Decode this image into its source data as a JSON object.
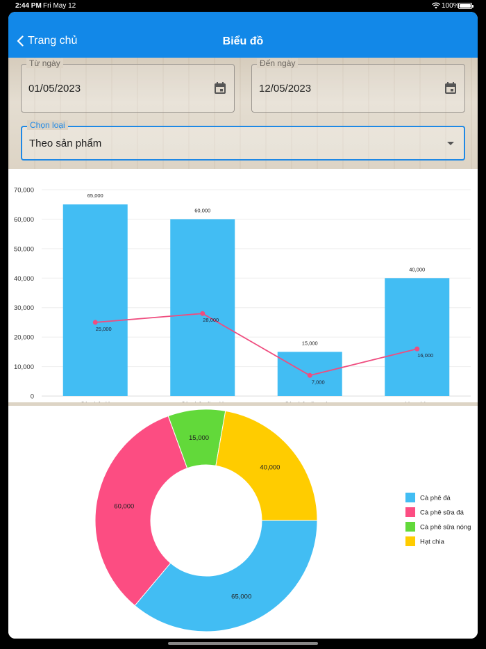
{
  "status": {
    "time": "2:44 PM",
    "date": "Fri May 12",
    "battery": "100%"
  },
  "nav": {
    "back_label": "Trang chủ",
    "title": "Biểu đồ"
  },
  "filters": {
    "from": {
      "label": "Từ ngày",
      "value": "01/05/2023"
    },
    "to": {
      "label": "Đến ngày",
      "value": "12/05/2023"
    },
    "type": {
      "label": "Chọn loại",
      "value": "Theo sản phẩm"
    }
  },
  "chart_data": [
    {
      "type": "bar",
      "categories": [
        "Cà phê đá",
        "Cà phê sữa đá",
        "Cà phê sữa nóng",
        "Hạt chia"
      ],
      "series": [
        {
          "name": "bar",
          "values": [
            65000,
            60000,
            15000,
            40000
          ],
          "labels": [
            "65,000",
            "60,000",
            "15,000",
            "40,000"
          ],
          "color": "#42bdf3"
        },
        {
          "name": "line",
          "values": [
            25000,
            28000,
            7000,
            16000
          ],
          "labels": [
            "25,000",
            "28,000",
            "7,000",
            "16,000"
          ],
          "color": "#ef4d7f"
        }
      ],
      "ylim": [
        0,
        70000
      ],
      "yticks": [
        0,
        10000,
        20000,
        30000,
        40000,
        50000,
        60000,
        70000
      ],
      "ytick_labels": [
        "0",
        "10,000",
        "20,000",
        "30,000",
        "40,000",
        "50,000",
        "60,000",
        "70,000"
      ],
      "grid": true
    },
    {
      "type": "pie",
      "donut": true,
      "slices": [
        {
          "name": "Cà phê đá",
          "value": 65000,
          "label": "65,000",
          "color": "#42bdf3"
        },
        {
          "name": "Cà phê sữa đá",
          "value": 60000,
          "label": "60,000",
          "color": "#fc4d82"
        },
        {
          "name": "Cà phê sữa nóng",
          "value": 15000,
          "label": "15,000",
          "color": "#62d93a"
        },
        {
          "name": "Hạt chia",
          "value": 40000,
          "label": "40,000",
          "color": "#ffcc00"
        }
      ],
      "legend": "right"
    }
  ]
}
